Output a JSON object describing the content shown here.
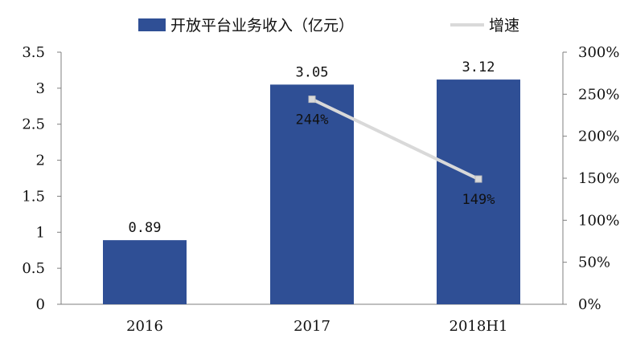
{
  "chart_data": {
    "type": "bar",
    "categories": [
      "2016",
      "2017",
      "2018H1"
    ],
    "series": [
      {
        "name": "开放平台业务收入（亿元）",
        "type": "bar",
        "axis": "left",
        "color": "#2f4f95",
        "values": [
          0.89,
          3.05,
          3.12
        ],
        "labels": [
          "0.89",
          "3.05",
          "3.12"
        ]
      },
      {
        "name": "增速",
        "type": "line",
        "axis": "right",
        "color": "#d9d9d9",
        "values": [
          null,
          244,
          149
        ],
        "labels": [
          "",
          "244%",
          "149%"
        ]
      }
    ],
    "y_left": {
      "min": 0,
      "max": 3.5,
      "ticks": [
        "0",
        "0.5",
        "1",
        "1.5",
        "2",
        "2.5",
        "3",
        "3.5"
      ]
    },
    "y_right": {
      "min": 0,
      "max": 300,
      "ticks": [
        "0%",
        "50%",
        "100%",
        "150%",
        "200%",
        "250%",
        "300%"
      ]
    },
    "grid": false,
    "legend_position": "top"
  }
}
